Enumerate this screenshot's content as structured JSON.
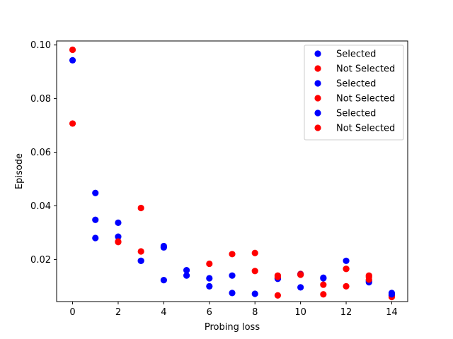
{
  "chart_data": {
    "type": "scatter",
    "title": "",
    "xlabel": "Probing loss",
    "ylabel": "Episode",
    "xlim": [
      -0.7,
      14.7
    ],
    "ylim": [
      0.0043,
      0.1015
    ],
    "xticks": [
      "0",
      "2",
      "4",
      "6",
      "8",
      "10",
      "12",
      "14"
    ],
    "xtick_values": [
      0,
      2,
      4,
      6,
      8,
      10,
      12,
      14
    ],
    "yticks": [
      "0.02",
      "0.04",
      "0.06",
      "0.08",
      "0.10"
    ],
    "ytick_values": [
      0.02,
      0.04,
      0.06,
      0.08,
      0.1
    ],
    "grid": false,
    "legend_position": "top-right",
    "series": [
      {
        "name": "Selected",
        "color": "#0000ff",
        "points": [
          [
            0,
            0.0943
          ],
          [
            1,
            0.0348
          ],
          [
            2,
            0.0285
          ],
          [
            3,
            0.0195
          ],
          [
            4,
            0.025
          ],
          [
            5,
            0.014
          ],
          [
            6,
            0.013
          ],
          [
            7,
            0.014
          ],
          [
            8,
            0.0072
          ],
          [
            9,
            0.013
          ],
          [
            10,
            0.0096
          ],
          [
            11,
            0.0132
          ],
          [
            12,
            0.0195
          ],
          [
            13,
            0.0115
          ],
          [
            14,
            0.0075
          ]
        ]
      },
      {
        "name": "Not Selected",
        "color": "#ff0000",
        "points": [
          [
            0,
            0.0982
          ],
          [
            2,
            0.0267
          ],
          [
            3,
            0.0392
          ],
          [
            6,
            0.0184
          ],
          [
            7,
            0.022
          ],
          [
            8,
            0.0224
          ],
          [
            9,
            0.014
          ],
          [
            10,
            0.0146
          ],
          [
            11,
            0.007
          ],
          [
            12,
            0.0165
          ],
          [
            13,
            0.014
          ],
          [
            14,
            0.0065
          ]
        ]
      },
      {
        "name": "Selected",
        "color": "#0000ff",
        "points": [
          [
            1,
            0.0448
          ],
          [
            2,
            0.0337
          ],
          [
            4,
            0.0123
          ],
          [
            5,
            0.016
          ],
          [
            6,
            0.01
          ],
          [
            7,
            0.0075
          ],
          [
            10,
            0.0144
          ],
          [
            11,
            0.013
          ],
          [
            13,
            0.012
          ]
        ]
      },
      {
        "name": "Not Selected",
        "color": "#ff0000",
        "points": [
          [
            0,
            0.0707
          ],
          [
            3,
            0.023
          ],
          [
            8,
            0.0157
          ],
          [
            9,
            0.0066
          ],
          [
            11,
            0.0106
          ],
          [
            12,
            0.01
          ],
          [
            13,
            0.0125
          ],
          [
            14,
            0.006
          ]
        ]
      },
      {
        "name": "Selected",
        "color": "#0000ff",
        "points": [
          [
            1,
            0.028
          ],
          [
            3,
            0.0195
          ],
          [
            4,
            0.0245
          ],
          [
            9,
            0.0128
          ],
          [
            14,
            0.007
          ]
        ]
      },
      {
        "name": "Not Selected",
        "color": "#ff0000",
        "points": [
          [
            2,
            0.0265
          ],
          [
            9,
            0.0135
          ],
          [
            10,
            0.0143
          ],
          [
            12,
            0.0165
          ],
          [
            13,
            0.0135
          ]
        ]
      }
    ]
  }
}
